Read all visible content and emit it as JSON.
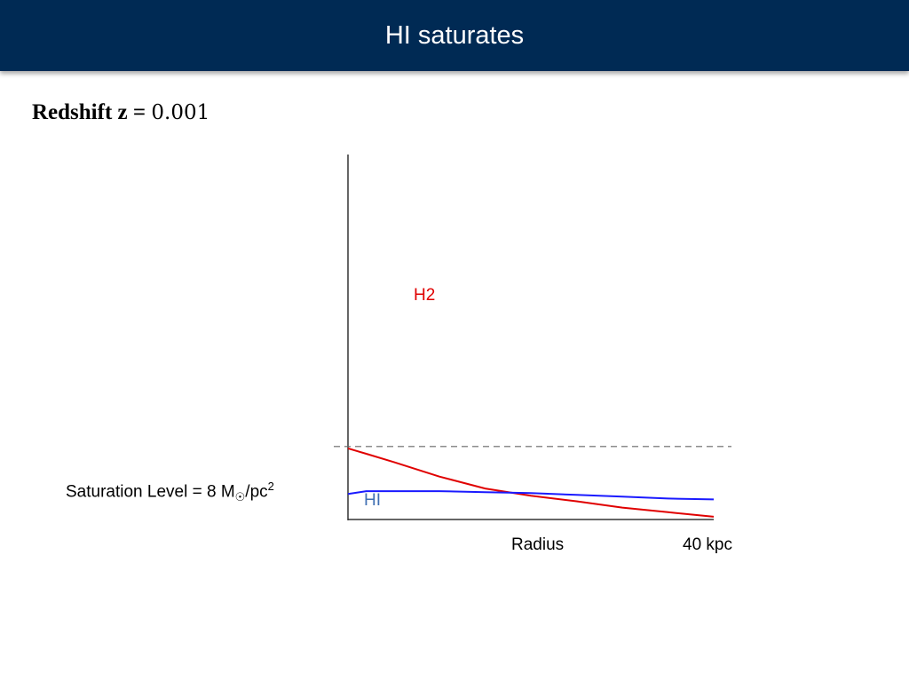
{
  "title": "HI saturates",
  "redshift": {
    "label": "Redshift z = ",
    "value": "0.001"
  },
  "saturation": {
    "text": "Saturation Level = 8 M",
    "sub": "☉",
    "unit": "/pc",
    "sup": "2"
  },
  "chart_data": {
    "type": "line",
    "xlabel": "Radius",
    "x_max_label": "40 kpc",
    "xlim": [
      0,
      40
    ],
    "ylim": [
      0,
      40
    ],
    "saturation_level": 8,
    "series": [
      {
        "name": "H2",
        "color": "#e00000",
        "x": [
          0,
          2,
          5,
          10,
          15,
          20,
          25,
          30,
          35,
          40
        ],
        "y": [
          7.8,
          7.2,
          6.3,
          4.7,
          3.4,
          2.6,
          2.0,
          1.3,
          0.8,
          0.3
        ]
      },
      {
        "name": "HI",
        "color": "#1a1aff",
        "x": [
          0,
          2,
          5,
          10,
          15,
          20,
          25,
          30,
          35,
          40
        ],
        "y": [
          2.8,
          3.1,
          3.1,
          3.1,
          3.0,
          2.9,
          2.7,
          2.5,
          2.3,
          2.2
        ]
      }
    ]
  }
}
